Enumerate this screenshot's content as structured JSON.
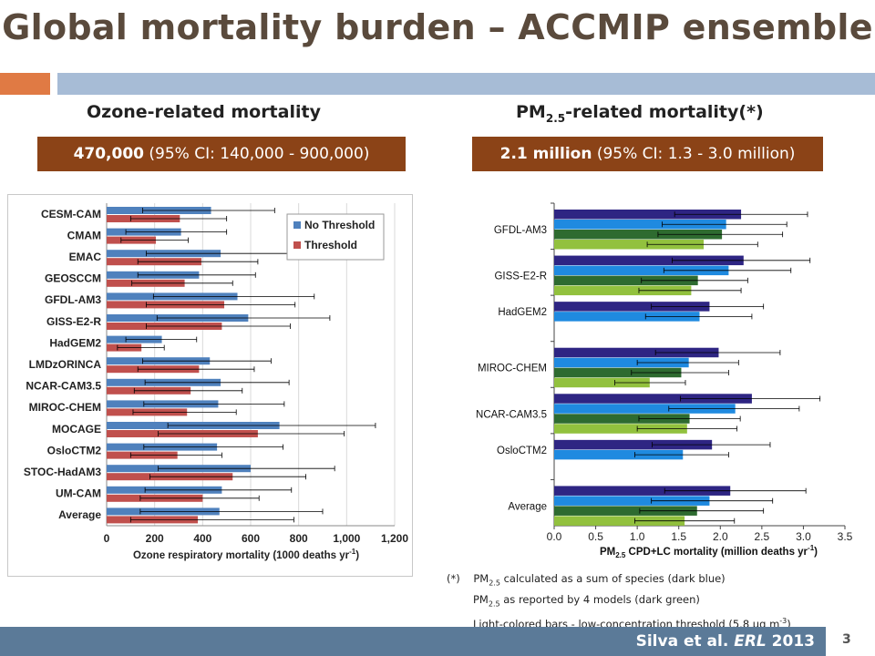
{
  "slide": {
    "title": "Global mortality burden – ACCMIP ensemble",
    "left_heading": "Ozone-related mortality",
    "right_heading_pre": "PM",
    "right_heading_sub": "2.5",
    "right_heading_post": "-related mortality(*)",
    "left_box_bold": "470,000",
    "left_box_rest": " (95% CI: 140,000 - 900,000)",
    "right_box_bold": "2.1 million",
    "right_box_rest": " (95% CI: 1.3 - 3.0 million)",
    "footnote_mark": "(*)",
    "footnote_1_pre": "PM",
    "footnote_1_sub": "2.5",
    "footnote_1_post": " calculated as a sum of species (dark blue)",
    "footnote_2_pre": "PM",
    "footnote_2_sub": "2.5",
    "footnote_2_post": " as reported by 4 models (dark green)",
    "footnote_3_pre": "Light-colored bars - low-concentration threshold (5.8 µg m",
    "footnote_3_sup": "-3",
    "footnote_3_post": ")",
    "citation_pre": "Silva et al. ",
    "citation_journal": "ERL",
    "citation_post": " 2013",
    "page_number": "3"
  },
  "colors": {
    "brown": "#8b4317",
    "no_threshold": "#4f81bd",
    "threshold": "#c0504d",
    "dark_blue": "#2e2583",
    "med_blue": "#1f8ae0",
    "dark_green": "#2e6b30",
    "light_green": "#92c13e"
  },
  "chart_data": [
    {
      "type": "bar",
      "orientation": "horizontal",
      "categories": [
        "CESM-CAM",
        "CMAM",
        "EMAC",
        "GEOSCCM",
        "GFDL-AM3",
        "GISS-E2-R",
        "HadGEM2",
        "LMDzORINCA",
        "NCAR-CAM3.5",
        "MIROC-CHEM",
        "MOCAGE",
        "OsloCTM2",
        "STOC-HadAM3",
        "UM-CAM",
        "Average"
      ],
      "series": [
        {
          "name": "No Threshold",
          "values": [
            435,
            310,
            475,
            385,
            545,
            590,
            230,
            430,
            475,
            465,
            720,
            460,
            600,
            480,
            470
          ],
          "error_low": [
            150,
            80,
            165,
            130,
            195,
            210,
            80,
            150,
            160,
            155,
            255,
            155,
            215,
            160,
            140
          ],
          "error_high": [
            700,
            500,
            770,
            620,
            865,
            930,
            375,
            685,
            760,
            740,
            1120,
            735,
            950,
            770,
            900
          ]
        },
        {
          "name": "Threshold",
          "values": [
            305,
            205,
            395,
            325,
            490,
            480,
            145,
            385,
            350,
            335,
            630,
            295,
            525,
            400,
            380
          ],
          "error_low": [
            100,
            60,
            130,
            105,
            165,
            165,
            45,
            130,
            115,
            110,
            215,
            100,
            180,
            140,
            100
          ],
          "error_high": [
            500,
            340,
            630,
            525,
            785,
            765,
            240,
            615,
            565,
            540,
            990,
            480,
            830,
            635,
            780
          ]
        }
      ],
      "xlabel_pre": "Ozone respiratory mortality (1000 deaths yr",
      "xlabel_sup": "-1",
      "xlabel_post": ")",
      "xlim": [
        0,
        1200
      ],
      "xticks": [
        "0",
        "200",
        "400",
        "600",
        "800",
        "1,000",
        "1,200"
      ],
      "grid": true,
      "legend": "top-right"
    },
    {
      "type": "bar",
      "orientation": "horizontal",
      "categories": [
        "GFDL-AM3",
        "GISS-E2-R",
        "HadGEM2",
        "MIROC-CHEM",
        "NCAR-CAM3.5",
        "OsloCTM2",
        "Average"
      ],
      "series": [
        {
          "values": [
            2.25,
            2.28,
            1.87,
            1.98,
            2.38,
            1.9,
            2.12
          ],
          "error_low": [
            1.45,
            1.42,
            1.17,
            1.22,
            1.52,
            1.18,
            1.33
          ],
          "error_high": [
            3.05,
            3.08,
            2.52,
            2.72,
            3.2,
            2.6,
            3.03
          ]
        },
        {
          "values": [
            2.07,
            2.1,
            1.75,
            1.62,
            2.18,
            1.55,
            1.87
          ],
          "error_low": [
            1.3,
            1.32,
            1.1,
            1.0,
            1.38,
            0.97,
            1.17
          ],
          "error_high": [
            2.8,
            2.85,
            2.38,
            2.22,
            2.95,
            2.1,
            2.63
          ]
        },
        {
          "values": [
            2.02,
            1.73,
            null,
            1.53,
            1.63,
            null,
            1.72
          ],
          "error_low": [
            1.25,
            1.05,
            null,
            0.93,
            1.02,
            null,
            1.03
          ],
          "error_high": [
            2.75,
            2.33,
            null,
            2.1,
            2.24,
            null,
            2.52
          ]
        },
        {
          "values": [
            1.8,
            1.65,
            null,
            1.15,
            1.6,
            null,
            1.57
          ],
          "error_low": [
            1.12,
            1.02,
            null,
            0.73,
            1.0,
            null,
            0.97
          ],
          "error_high": [
            2.45,
            2.25,
            null,
            1.58,
            2.2,
            null,
            2.17
          ]
        }
      ],
      "xlabel_pre": "PM",
      "xlabel_sub": "2.5",
      "xlabel_mid": " CPD+LC mortality (million deaths yr",
      "xlabel_sup": "-1",
      "xlabel_post": ")",
      "xlim": [
        0,
        3.5
      ],
      "xticks": [
        "0.0",
        "0.5",
        "1.0",
        "1.5",
        "2.0",
        "2.5",
        "3.0",
        "3.5"
      ],
      "grid": false
    }
  ]
}
